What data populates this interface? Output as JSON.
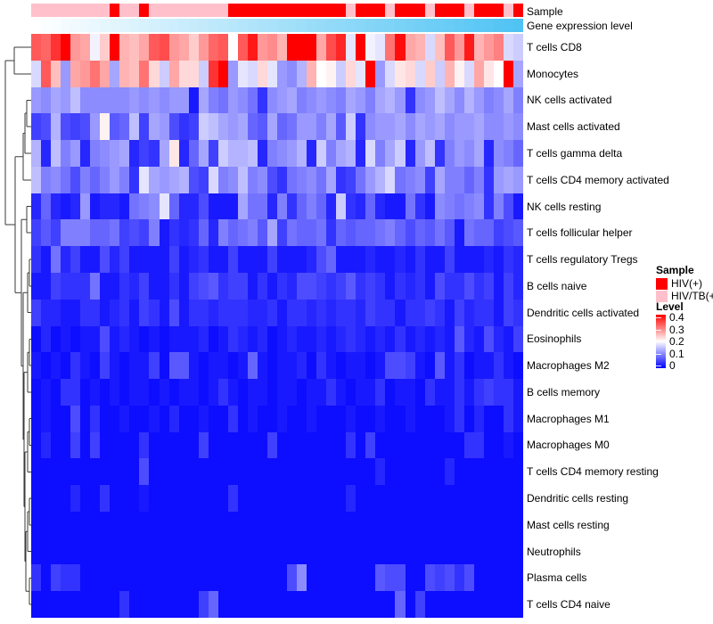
{
  "annotations": {
    "sample": {
      "label": "Sample",
      "colors": {
        "red": "#FF0000",
        "pink": "#FFC0CB"
      },
      "values": [
        "pink",
        "pink",
        "pink",
        "pink",
        "pink",
        "pink",
        "pink",
        "pink",
        "red",
        "pink",
        "pink",
        "red",
        "pink",
        "pink",
        "pink",
        "pink",
        "pink",
        "pink",
        "pink",
        "pink",
        "red",
        "red",
        "red",
        "red",
        "red",
        "red",
        "red",
        "red",
        "red",
        "red",
        "red",
        "red",
        "pink",
        "red",
        "red",
        "red",
        "pink",
        "red",
        "red",
        "red",
        "pink",
        "red",
        "red",
        "red",
        "pink",
        "red",
        "red",
        "red",
        "pink",
        "red"
      ]
    },
    "gene_expression": {
      "label": "Gene expression level",
      "start_color": "#FFFFFF",
      "end_color": "#4FC3F4",
      "n": 50
    }
  },
  "chart_data": {
    "type": "heatmap",
    "n_cols": 50,
    "colormap": {
      "min": 0,
      "mid": 0.2,
      "max": 0.4,
      "min_color": "#0000FF",
      "mid_color": "#FFFFFF",
      "max_color": "#FF0000"
    },
    "rows": [
      "T cells CD8",
      "Monocytes",
      "NK cells activated",
      "Mast cells activated",
      "T cells gamma delta",
      "T cells CD4 memory activated",
      "NK cells resting",
      "T cells follicular helper",
      "T cells regulatory  Tregs",
      "B cells naive",
      "Dendritic cells activated",
      "Eosinophils",
      "Macrophages M2",
      "B cells memory",
      "Macrophages M1",
      "Macrophages M0",
      "T cells CD4 memory resting",
      "Dendritic cells resting",
      "Mast cells resting",
      "Neutrophils",
      "Plasma cells",
      "T cells CD4 naive"
    ],
    "matrix": [
      [
        0.33,
        0.32,
        0.36,
        0.4,
        0.28,
        0.27,
        0.19,
        0.24,
        0.4,
        0.26,
        0.25,
        0.27,
        0.33,
        0.34,
        0.28,
        0.27,
        0.24,
        0.28,
        0.32,
        0.33,
        0.2,
        0.33,
        0.38,
        0.28,
        0.29,
        0.26,
        0.4,
        0.4,
        0.4,
        0.27,
        0.34,
        0.37,
        0.18,
        0.4,
        0.19,
        0.18,
        0.31,
        0.39,
        0.27,
        0.26,
        0.17,
        0.25,
        0.33,
        0.28,
        0.38,
        0.26,
        0.28,
        0.3,
        0.17,
        0.16
      ],
      [
        0.17,
        0.33,
        0.25,
        0.12,
        0.27,
        0.28,
        0.31,
        0.27,
        0.13,
        0.26,
        0.25,
        0.31,
        0.23,
        0.16,
        0.27,
        0.23,
        0.23,
        0.16,
        0.36,
        0.4,
        0.12,
        0.18,
        0.17,
        0.23,
        0.18,
        0.12,
        0.11,
        0.14,
        0.26,
        0.2,
        0.21,
        0.16,
        0.23,
        0.18,
        0.4,
        0.12,
        0.17,
        0.22,
        0.23,
        0.17,
        0.24,
        0.16,
        0.26,
        0.21,
        0.17,
        0.27,
        0.22,
        0.2,
        0.4,
        0.13
      ],
      [
        0.12,
        0.11,
        0.13,
        0.12,
        0.15,
        0.11,
        0.11,
        0.11,
        0.11,
        0.11,
        0.12,
        0.11,
        0.12,
        0.11,
        0.12,
        0.12,
        0.02,
        0.13,
        0.1,
        0.09,
        0.12,
        0.11,
        0.09,
        0.04,
        0.11,
        0.12,
        0.13,
        0.1,
        0.11,
        0.12,
        0.11,
        0.1,
        0.13,
        0.12,
        0.1,
        0.13,
        0.14,
        0.12,
        0.04,
        0.11,
        0.12,
        0.15,
        0.13,
        0.11,
        0.14,
        0.12,
        0.1,
        0.11,
        0.13,
        0.1
      ],
      [
        0.05,
        0.06,
        0.14,
        0.06,
        0.05,
        0.06,
        0.12,
        0.21,
        0.07,
        0.08,
        0.15,
        0.05,
        0.13,
        0.12,
        0.06,
        0.04,
        0.05,
        0.16,
        0.15,
        0.13,
        0.12,
        0.13,
        0.08,
        0.07,
        0.13,
        0.08,
        0.09,
        0.12,
        0.12,
        0.1,
        0.13,
        0.07,
        0.16,
        0.04,
        0.11,
        0.12,
        0.12,
        0.13,
        0.11,
        0.13,
        0.12,
        0.13,
        0.11,
        0.12,
        0.12,
        0.13,
        0.11,
        0.11,
        0.12,
        0.11
      ],
      [
        0.14,
        0.03,
        0.15,
        0.1,
        0.12,
        0.03,
        0.1,
        0.11,
        0.12,
        0.13,
        0.03,
        0.05,
        0.04,
        0.13,
        0.22,
        0.03,
        0.08,
        0.13,
        0.05,
        0.16,
        0.14,
        0.14,
        0.15,
        0.03,
        0.1,
        0.11,
        0.12,
        0.14,
        0.03,
        0.16,
        0.1,
        0.13,
        0.14,
        0.03,
        0.17,
        0.1,
        0.13,
        0.16,
        0.03,
        0.12,
        0.15,
        0.04,
        0.1,
        0.12,
        0.11,
        0.13,
        0.03,
        0.11,
        0.1,
        0.08
      ],
      [
        0.15,
        0.1,
        0.11,
        0.09,
        0.06,
        0.1,
        0.08,
        0.1,
        0.12,
        0.1,
        0.04,
        0.18,
        0.13,
        0.12,
        0.13,
        0.14,
        0.06,
        0.05,
        0.17,
        0.1,
        0.11,
        0.15,
        0.1,
        0.11,
        0.06,
        0.04,
        0.09,
        0.1,
        0.11,
        0.09,
        0.13,
        0.04,
        0.05,
        0.09,
        0.12,
        0.14,
        0.17,
        0.09,
        0.1,
        0.11,
        0.05,
        0.13,
        0.1,
        0.1,
        0.08,
        0.1,
        0.04,
        0.12,
        0.13,
        0.12
      ],
      [
        0.03,
        0.08,
        0.03,
        0.02,
        0.03,
        0.12,
        0.02,
        0.03,
        0.03,
        0.02,
        0.09,
        0.1,
        0.11,
        0.18,
        0.08,
        0.03,
        0.03,
        0.06,
        0.02,
        0.02,
        0.02,
        0.13,
        0.09,
        0.09,
        0.03,
        0.1,
        0.04,
        0.08,
        0.1,
        0.08,
        0.03,
        0.16,
        0.04,
        0.03,
        0.08,
        0.03,
        0.02,
        0.02,
        0.09,
        0.04,
        0.02,
        0.11,
        0.1,
        0.09,
        0.1,
        0.11,
        0.04,
        0.1,
        0.06,
        0.02
      ],
      [
        0.05,
        0.07,
        0.05,
        0.1,
        0.1,
        0.1,
        0.08,
        0.08,
        0.09,
        0.05,
        0.06,
        0.05,
        0.1,
        0.02,
        0.04,
        0.03,
        0.04,
        0.08,
        0.03,
        0.1,
        0.08,
        0.09,
        0.1,
        0.07,
        0.13,
        0.05,
        0.09,
        0.08,
        0.08,
        0.09,
        0.04,
        0.08,
        0.07,
        0.08,
        0.08,
        0.09,
        0.1,
        0.08,
        0.06,
        0.08,
        0.07,
        0.09,
        0.07,
        0.02,
        0.09,
        0.08,
        0.08,
        0.05,
        0.06,
        0.07
      ],
      [
        0.04,
        0.02,
        0.09,
        0.03,
        0.05,
        0.02,
        0.02,
        0.06,
        0.03,
        0.05,
        0.02,
        0.02,
        0.02,
        0.02,
        0.05,
        0.02,
        0.03,
        0.04,
        0.02,
        0.02,
        0.05,
        0.02,
        0.02,
        0.02,
        0.05,
        0.02,
        0.02,
        0.02,
        0.03,
        0.06,
        0.08,
        0.02,
        0.02,
        0.02,
        0.03,
        0.02,
        0.02,
        0.03,
        0.02,
        0.04,
        0.02,
        0.02,
        0.05,
        0.02,
        0.02,
        0.02,
        0.03,
        0.02,
        0.04,
        0.03
      ],
      [
        0.02,
        0.02,
        0.05,
        0.04,
        0.04,
        0.04,
        0.09,
        0.02,
        0.02,
        0.04,
        0.03,
        0.05,
        0.02,
        0.02,
        0.04,
        0.02,
        0.05,
        0.06,
        0.07,
        0.04,
        0.05,
        0.05,
        0.02,
        0.04,
        0.02,
        0.04,
        0.03,
        0.06,
        0.06,
        0.05,
        0.04,
        0.05,
        0.07,
        0.04,
        0.05,
        0.04,
        0.02,
        0.04,
        0.03,
        0.04,
        0.02,
        0.06,
        0.04,
        0.04,
        0.06,
        0.04,
        0.05,
        0.02,
        0.05,
        0.03
      ],
      [
        0.05,
        0.03,
        0.03,
        0.02,
        0.02,
        0.04,
        0.04,
        0.02,
        0.03,
        0.04,
        0.02,
        0.05,
        0.04,
        0.02,
        0.06,
        0.02,
        0.04,
        0.04,
        0.03,
        0.04,
        0.04,
        0.04,
        0.03,
        0.03,
        0.04,
        0.02,
        0.04,
        0.04,
        0.03,
        0.04,
        0.03,
        0.04,
        0.04,
        0.03,
        0.05,
        0.04,
        0.04,
        0.02,
        0.04,
        0.04,
        0.05,
        0.04,
        0.02,
        0.05,
        0.03,
        0.04,
        0.04,
        0.02,
        0.05,
        0.04
      ],
      [
        0.01,
        0.03,
        0.01,
        0.02,
        0.01,
        0.02,
        0.02,
        0.06,
        0.02,
        0.03,
        0.02,
        0.01,
        0.02,
        0.01,
        0.02,
        0.02,
        0.02,
        0.03,
        0.01,
        0.02,
        0.04,
        0.03,
        0.02,
        0.03,
        0.01,
        0.02,
        0.03,
        0.02,
        0.02,
        0.03,
        0.02,
        0.03,
        0.04,
        0.03,
        0.02,
        0.03,
        0.02,
        0.04,
        0.02,
        0.03,
        0.02,
        0.03,
        0.02,
        0.07,
        0.03,
        0.02,
        0.06,
        0.03,
        0.02,
        0.05
      ],
      [
        0.02,
        0.01,
        0.02,
        0.01,
        0.04,
        0.02,
        0.01,
        0.05,
        0.02,
        0.01,
        0.02,
        0.02,
        0.05,
        0.01,
        0.07,
        0.07,
        0.02,
        0.01,
        0.02,
        0.02,
        0.01,
        0.02,
        0.08,
        0.02,
        0.01,
        0.02,
        0.02,
        0.03,
        0.01,
        0.04,
        0.02,
        0.01,
        0.02,
        0.02,
        0.01,
        0.02,
        0.06,
        0.06,
        0.05,
        0.02,
        0.01,
        0.07,
        0.02,
        0.04,
        0.01,
        0.02,
        0.02,
        0.04,
        0.02,
        0.01
      ],
      [
        0.01,
        0.02,
        0.01,
        0.04,
        0.04,
        0.01,
        0.02,
        0.01,
        0.02,
        0.01,
        0.02,
        0.02,
        0.01,
        0.02,
        0.01,
        0.02,
        0.02,
        0.01,
        0.02,
        0.04,
        0.02,
        0.01,
        0.02,
        0.02,
        0.01,
        0.02,
        0.02,
        0.01,
        0.02,
        0.02,
        0.04,
        0.02,
        0.01,
        0.02,
        0.02,
        0.04,
        0.01,
        0.02,
        0.02,
        0.01,
        0.04,
        0.02,
        0.02,
        0.04,
        0.02,
        0.04,
        0.05,
        0.04,
        0.04,
        0.02
      ],
      [
        0.01,
        0.02,
        0.01,
        0.01,
        0.06,
        0.01,
        0.04,
        0.01,
        0.01,
        0.02,
        0.01,
        0.01,
        0.02,
        0.01,
        0.03,
        0.01,
        0.01,
        0.02,
        0.01,
        0.01,
        0.04,
        0.01,
        0.02,
        0.01,
        0.01,
        0.02,
        0.01,
        0.01,
        0.02,
        0.01,
        0.01,
        0.01,
        0.02,
        0.01,
        0.01,
        0.02,
        0.01,
        0.01,
        0.02,
        0.01,
        0.01,
        0.01,
        0.02,
        0.04,
        0.01,
        0.03,
        0.01,
        0.01,
        0.04,
        0.02
      ],
      [
        0.01,
        0.03,
        0.01,
        0.01,
        0.05,
        0.01,
        0.05,
        0.01,
        0.01,
        0.01,
        0.01,
        0.04,
        0.01,
        0.01,
        0.01,
        0.01,
        0.01,
        0.05,
        0.01,
        0.01,
        0.01,
        0.01,
        0.01,
        0.01,
        0.05,
        0.01,
        0.01,
        0.01,
        0.01,
        0.01,
        0.01,
        0.01,
        0.04,
        0.01,
        0.05,
        0.01,
        0.01,
        0.01,
        0.01,
        0.01,
        0.01,
        0.01,
        0.01,
        0.01,
        0.04,
        0.04,
        0.01,
        0.01,
        0.02,
        0.01
      ],
      [
        0.01,
        0.01,
        0.01,
        0.01,
        0.01,
        0.01,
        0.01,
        0.01,
        0.01,
        0.01,
        0.01,
        0.06,
        0.01,
        0.01,
        0.01,
        0.01,
        0.01,
        0.01,
        0.01,
        0.01,
        0.01,
        0.01,
        0.01,
        0.01,
        0.01,
        0.01,
        0.01,
        0.01,
        0.01,
        0.01,
        0.01,
        0.01,
        0.01,
        0.01,
        0.01,
        0.03,
        0.01,
        0.01,
        0.01,
        0.01,
        0.01,
        0.01,
        0.03,
        0.01,
        0.01,
        0.01,
        0.01,
        0.01,
        0.01,
        0.01
      ],
      [
        0.01,
        0.01,
        0.01,
        0.01,
        0.03,
        0.01,
        0.01,
        0.04,
        0.01,
        0.01,
        0.01,
        0.02,
        0.01,
        0.01,
        0.01,
        0.01,
        0.01,
        0.01,
        0.01,
        0.01,
        0.04,
        0.01,
        0.01,
        0.01,
        0.01,
        0.01,
        0.01,
        0.01,
        0.01,
        0.01,
        0.01,
        0.01,
        0.03,
        0.01,
        0.01,
        0.01,
        0.01,
        0.01,
        0.01,
        0.01,
        0.01,
        0.01,
        0.01,
        0.01,
        0.01,
        0.01,
        0.01,
        0.01,
        0.01,
        0.01
      ],
      [
        0.01,
        0.01,
        0.01,
        0.01,
        0.01,
        0.01,
        0.01,
        0.01,
        0.01,
        0.01,
        0.01,
        0.01,
        0.01,
        0.01,
        0.01,
        0.01,
        0.01,
        0.01,
        0.01,
        0.01,
        0.01,
        0.01,
        0.01,
        0.01,
        0.01,
        0.01,
        0.01,
        0.01,
        0.01,
        0.01,
        0.01,
        0.01,
        0.01,
        0.01,
        0.01,
        0.01,
        0.01,
        0.01,
        0.01,
        0.01,
        0.01,
        0.01,
        0.01,
        0.01,
        0.01,
        0.01,
        0.01,
        0.01,
        0.01,
        0.01
      ],
      [
        0.01,
        0.01,
        0.01,
        0.01,
        0.01,
        0.01,
        0.01,
        0.01,
        0.01,
        0.01,
        0.01,
        0.01,
        0.01,
        0.01,
        0.01,
        0.01,
        0.01,
        0.01,
        0.01,
        0.01,
        0.01,
        0.01,
        0.01,
        0.01,
        0.01,
        0.01,
        0.01,
        0.01,
        0.01,
        0.01,
        0.01,
        0.01,
        0.01,
        0.01,
        0.01,
        0.01,
        0.01,
        0.01,
        0.01,
        0.01,
        0.01,
        0.01,
        0.01,
        0.01,
        0.01,
        0.01,
        0.01,
        0.01,
        0.01,
        0.01
      ],
      [
        0.04,
        0.01,
        0.05,
        0.04,
        0.04,
        0.01,
        0.01,
        0.01,
        0.01,
        0.01,
        0.01,
        0.01,
        0.01,
        0.01,
        0.01,
        0.01,
        0.01,
        0.01,
        0.01,
        0.01,
        0.01,
        0.01,
        0.01,
        0.01,
        0.01,
        0.01,
        0.06,
        0.11,
        0.01,
        0.01,
        0.01,
        0.01,
        0.01,
        0.01,
        0.01,
        0.07,
        0.06,
        0.06,
        0.01,
        0.01,
        0.06,
        0.05,
        0.06,
        0.04,
        0.06,
        0.01,
        0.01,
        0.01,
        0.01,
        0.01
      ],
      [
        0.01,
        0.01,
        0.01,
        0.01,
        0.01,
        0.01,
        0.01,
        0.01,
        0.01,
        0.04,
        0.01,
        0.01,
        0.01,
        0.01,
        0.01,
        0.01,
        0.01,
        0.05,
        0.08,
        0.01,
        0.01,
        0.01,
        0.01,
        0.01,
        0.01,
        0.01,
        0.01,
        0.01,
        0.01,
        0.01,
        0.01,
        0.01,
        0.01,
        0.01,
        0.01,
        0.01,
        0.01,
        0.08,
        0.01,
        0.05,
        0.01,
        0.01,
        0.01,
        0.01,
        0.01,
        0.01,
        0.01,
        0.01,
        0.01,
        0.01
      ]
    ]
  },
  "legend": {
    "sample_title": "Sample",
    "entries": [
      {
        "label": "HIV(+)",
        "color": "#FF0000"
      },
      {
        "label": "HIV/TB(+)",
        "color": "#FFC0CB"
      }
    ],
    "level_title": "Level",
    "ticks": [
      "0.4",
      "0.3",
      "0.2",
      "0.1",
      "0"
    ]
  }
}
